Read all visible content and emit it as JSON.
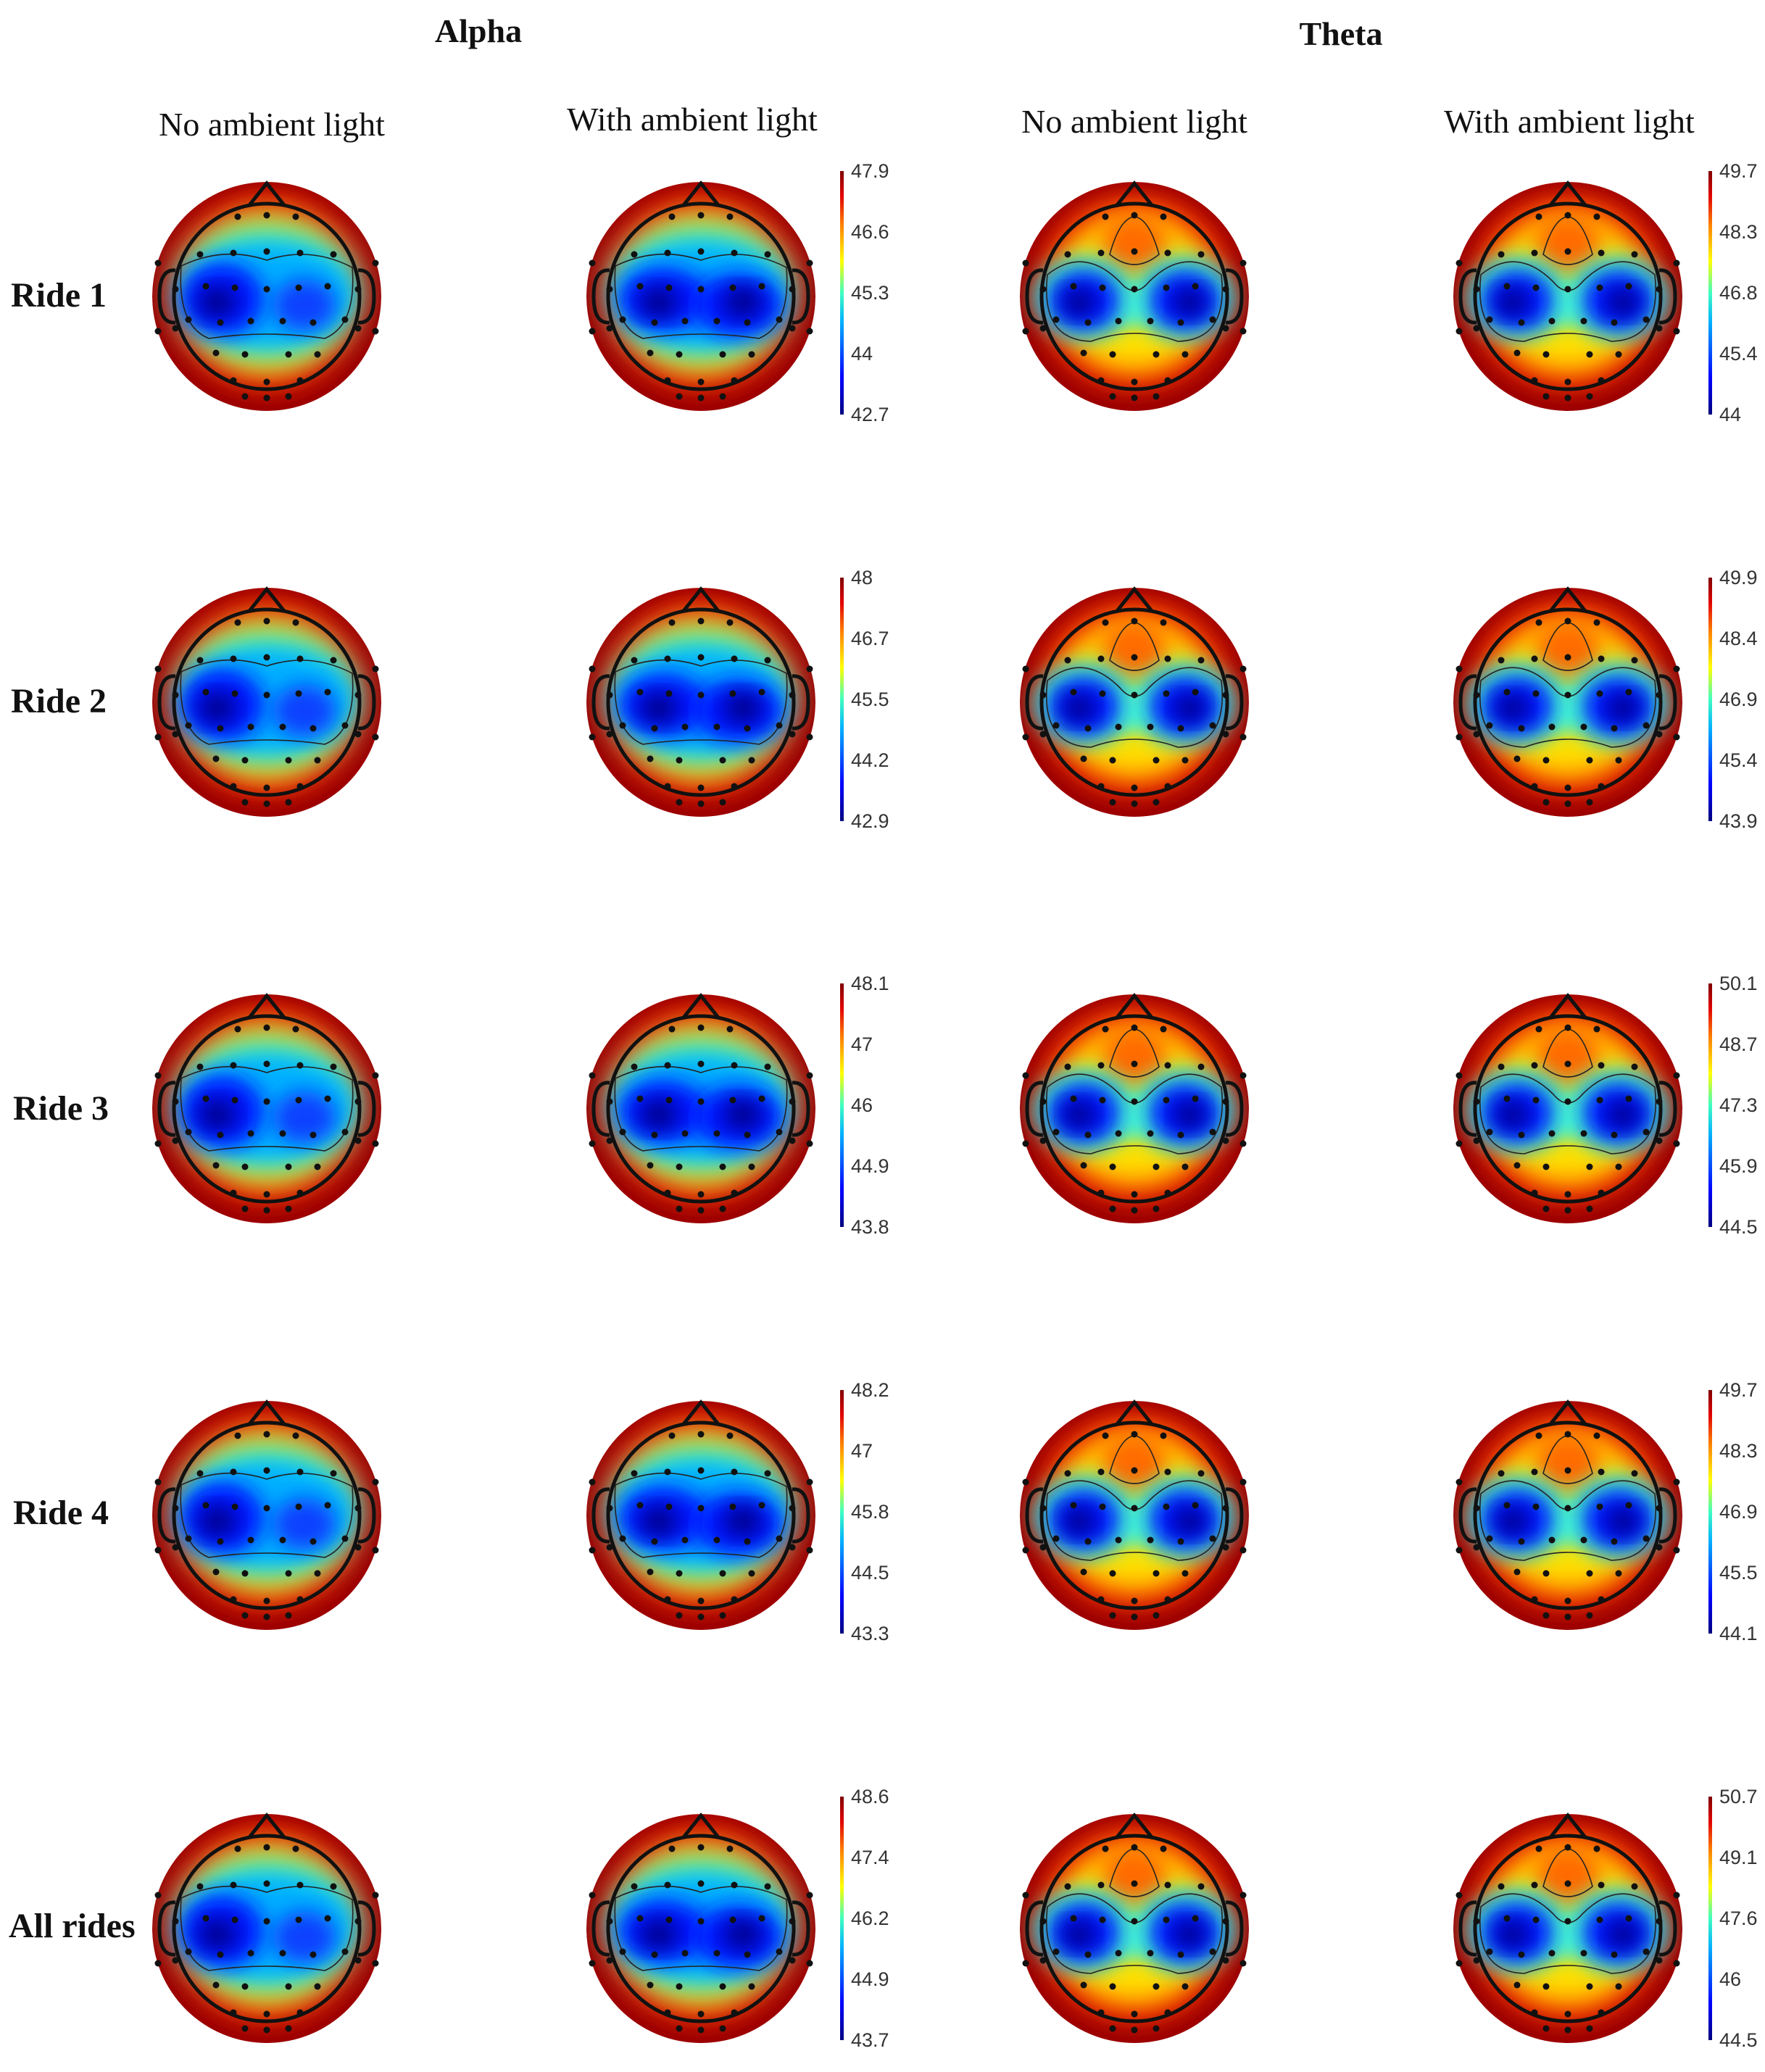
{
  "figure": {
    "bands": [
      {
        "title": "Alpha",
        "columns": [
          "No ambient light",
          "With ambient light"
        ]
      },
      {
        "title": "Theta",
        "columns": [
          "No ambient light",
          "With ambient light"
        ]
      }
    ],
    "rows": [
      "Ride 1",
      "Ride 2",
      "Ride 3",
      "Ride 4",
      "All rides"
    ],
    "colorbars": {
      "alpha": [
        [
          "47.9",
          "46.6",
          "45.3",
          "44",
          "42.7"
        ],
        [
          "48",
          "46.7",
          "45.5",
          "44.2",
          "42.9"
        ],
        [
          "48.1",
          "47",
          "46",
          "44.9",
          "43.8"
        ],
        [
          "48.2",
          "47",
          "45.8",
          "44.5",
          "43.3"
        ],
        [
          "48.6",
          "47.4",
          "46.2",
          "44.9",
          "43.7"
        ]
      ],
      "theta": [
        [
          "49.7",
          "48.3",
          "46.8",
          "45.4",
          "44"
        ],
        [
          "49.9",
          "48.4",
          "46.9",
          "45.4",
          "43.9"
        ],
        [
          "50.1",
          "48.7",
          "47.3",
          "45.9",
          "44.5"
        ],
        [
          "49.7",
          "48.3",
          "46.9",
          "45.5",
          "44.1"
        ],
        [
          "50.7",
          "49.1",
          "47.6",
          "46",
          "44.5"
        ]
      ]
    },
    "colormap": [
      "#00007f",
      "#0000ff",
      "#00b0ff",
      "#40ffc0",
      "#ffff00",
      "#ff8000",
      "#e00000",
      "#800000"
    ]
  }
}
